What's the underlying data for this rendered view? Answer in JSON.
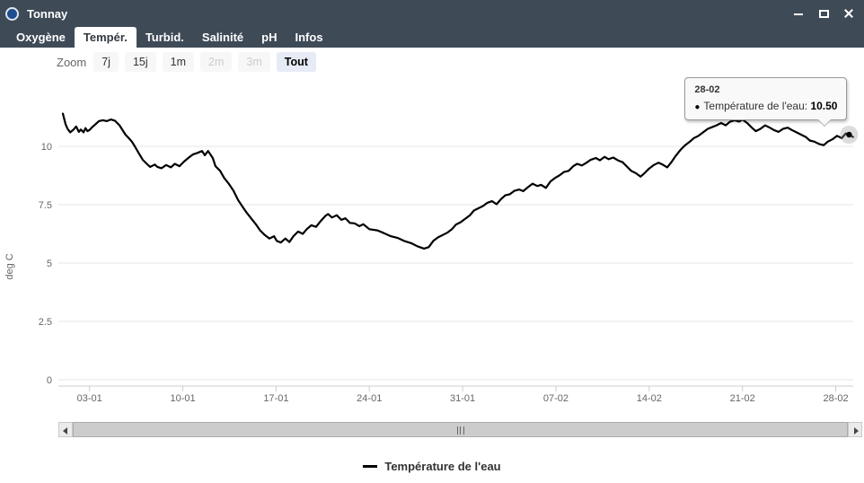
{
  "window": {
    "title": "Tonnay"
  },
  "tabs": [
    {
      "label": "Oxygène",
      "active": false
    },
    {
      "label": "Tempér.",
      "active": true
    },
    {
      "label": "Turbid.",
      "active": false
    },
    {
      "label": "Salinité",
      "active": false
    },
    {
      "label": "pH",
      "active": false
    },
    {
      "label": "Infos",
      "active": false
    }
  ],
  "zoom_bar": {
    "label": "Zoom",
    "buttons": [
      {
        "label": "7j",
        "state": "enabled"
      },
      {
        "label": "15j",
        "state": "enabled"
      },
      {
        "label": "1m",
        "state": "enabled"
      },
      {
        "label": "2m",
        "state": "disabled"
      },
      {
        "label": "3m",
        "state": "disabled"
      },
      {
        "label": "Tout",
        "state": "active"
      }
    ]
  },
  "tooltip": {
    "date": "28-02",
    "marker": "●",
    "series": "Température de l'eau",
    "value": "10.50"
  },
  "legend": {
    "items": [
      {
        "label": "Température de l'eau",
        "color": "#000000"
      }
    ]
  },
  "colors": {
    "header_bg": "#3f4a57",
    "active_tab_bg": "#ffffff",
    "series": "#000000",
    "zoom_active_bg": "#e6ebf5",
    "grid": "#e6e6e6",
    "axis_line": "#cccccc",
    "axis_text": "#666666",
    "tooltip_bg": "#f9f9f9"
  },
  "chart_data": {
    "type": "line",
    "title": "",
    "xlabel": "",
    "ylabel": "deg C",
    "grid": true,
    "legend_position": "bottom-center",
    "ylim": [
      0,
      11.9
    ],
    "xlim_days": [
      1,
      60.3
    ],
    "y_ticks": [
      {
        "v": 0,
        "label": "0"
      },
      {
        "v": 2.5,
        "label": "2.5"
      },
      {
        "v": 5,
        "label": "5"
      },
      {
        "v": 7.5,
        "label": "7.5"
      },
      {
        "v": 10,
        "label": "10"
      }
    ],
    "x_ticks": [
      {
        "day": 3,
        "label": "03-01"
      },
      {
        "day": 10,
        "label": "10-01"
      },
      {
        "day": 17,
        "label": "17-01"
      },
      {
        "day": 24,
        "label": "24-01"
      },
      {
        "day": 31,
        "label": "31-01"
      },
      {
        "day": 38,
        "label": "07-02"
      },
      {
        "day": 45,
        "label": "14-02"
      },
      {
        "day": 52,
        "label": "21-02"
      },
      {
        "day": 59,
        "label": "28-02"
      }
    ],
    "series": [
      {
        "name": "Température de l'eau",
        "color": "#000000",
        "points": [
          [
            1.0,
            11.4
          ],
          [
            1.2,
            10.95
          ],
          [
            1.35,
            10.75
          ],
          [
            1.55,
            10.6
          ],
          [
            1.8,
            10.72
          ],
          [
            2.0,
            10.85
          ],
          [
            2.2,
            10.62
          ],
          [
            2.35,
            10.72
          ],
          [
            2.55,
            10.6
          ],
          [
            2.7,
            10.78
          ],
          [
            2.85,
            10.65
          ],
          [
            3.0,
            10.7
          ],
          [
            3.2,
            10.82
          ],
          [
            3.4,
            10.92
          ],
          [
            3.7,
            11.08
          ],
          [
            4.0,
            11.12
          ],
          [
            4.3,
            11.08
          ],
          [
            4.6,
            11.15
          ],
          [
            4.9,
            11.1
          ],
          [
            5.25,
            10.9
          ],
          [
            5.7,
            10.5
          ],
          [
            6.0,
            10.32
          ],
          [
            6.2,
            10.18
          ],
          [
            6.4,
            10.0
          ],
          [
            6.7,
            9.7
          ],
          [
            7.0,
            9.42
          ],
          [
            7.3,
            9.25
          ],
          [
            7.55,
            9.12
          ],
          [
            7.9,
            9.22
          ],
          [
            8.1,
            9.12
          ],
          [
            8.4,
            9.06
          ],
          [
            8.75,
            9.2
          ],
          [
            9.1,
            9.1
          ],
          [
            9.4,
            9.25
          ],
          [
            9.75,
            9.15
          ],
          [
            10.1,
            9.35
          ],
          [
            10.45,
            9.52
          ],
          [
            10.75,
            9.65
          ],
          [
            11.1,
            9.72
          ],
          [
            11.45,
            9.8
          ],
          [
            11.65,
            9.62
          ],
          [
            11.9,
            9.8
          ],
          [
            12.25,
            9.5
          ],
          [
            12.45,
            9.15
          ],
          [
            12.8,
            8.95
          ],
          [
            13.1,
            8.65
          ],
          [
            13.45,
            8.4
          ],
          [
            13.8,
            8.1
          ],
          [
            14.15,
            7.7
          ],
          [
            14.5,
            7.4
          ],
          [
            14.8,
            7.15
          ],
          [
            15.15,
            6.9
          ],
          [
            15.5,
            6.65
          ],
          [
            15.8,
            6.4
          ],
          [
            16.15,
            6.2
          ],
          [
            16.5,
            6.05
          ],
          [
            16.85,
            6.15
          ],
          [
            17.05,
            5.95
          ],
          [
            17.35,
            5.88
          ],
          [
            17.7,
            6.05
          ],
          [
            18.0,
            5.9
          ],
          [
            18.3,
            6.15
          ],
          [
            18.65,
            6.35
          ],
          [
            19.0,
            6.25
          ],
          [
            19.3,
            6.45
          ],
          [
            19.65,
            6.62
          ],
          [
            20.0,
            6.55
          ],
          [
            20.35,
            6.8
          ],
          [
            20.7,
            7.02
          ],
          [
            20.9,
            7.1
          ],
          [
            21.2,
            6.95
          ],
          [
            21.55,
            7.05
          ],
          [
            21.9,
            6.85
          ],
          [
            22.2,
            6.92
          ],
          [
            22.55,
            6.72
          ],
          [
            22.9,
            6.7
          ],
          [
            23.25,
            6.58
          ],
          [
            23.55,
            6.66
          ],
          [
            24.0,
            6.45
          ],
          [
            24.6,
            6.4
          ],
          [
            25.1,
            6.28
          ],
          [
            25.6,
            6.15
          ],
          [
            26.1,
            6.08
          ],
          [
            26.6,
            5.95
          ],
          [
            27.15,
            5.85
          ],
          [
            27.6,
            5.72
          ],
          [
            28.1,
            5.62
          ],
          [
            28.45,
            5.68
          ],
          [
            28.8,
            5.95
          ],
          [
            29.15,
            6.1
          ],
          [
            29.5,
            6.2
          ],
          [
            29.85,
            6.3
          ],
          [
            30.2,
            6.45
          ],
          [
            30.5,
            6.65
          ],
          [
            30.85,
            6.75
          ],
          [
            31.2,
            6.9
          ],
          [
            31.55,
            7.05
          ],
          [
            31.85,
            7.25
          ],
          [
            32.2,
            7.35
          ],
          [
            32.55,
            7.45
          ],
          [
            32.85,
            7.58
          ],
          [
            33.2,
            7.65
          ],
          [
            33.55,
            7.52
          ],
          [
            33.9,
            7.75
          ],
          [
            34.2,
            7.9
          ],
          [
            34.55,
            7.95
          ],
          [
            34.9,
            8.1
          ],
          [
            35.25,
            8.15
          ],
          [
            35.55,
            8.08
          ],
          [
            35.9,
            8.25
          ],
          [
            36.25,
            8.4
          ],
          [
            36.6,
            8.3
          ],
          [
            36.9,
            8.35
          ],
          [
            37.25,
            8.22
          ],
          [
            37.6,
            8.5
          ],
          [
            37.95,
            8.65
          ],
          [
            38.25,
            8.75
          ],
          [
            38.6,
            8.9
          ],
          [
            38.95,
            8.95
          ],
          [
            39.3,
            9.15
          ],
          [
            39.6,
            9.25
          ],
          [
            39.95,
            9.18
          ],
          [
            40.3,
            9.3
          ],
          [
            40.6,
            9.42
          ],
          [
            41.0,
            9.5
          ],
          [
            41.3,
            9.4
          ],
          [
            41.65,
            9.55
          ],
          [
            41.95,
            9.45
          ],
          [
            42.3,
            9.52
          ],
          [
            42.65,
            9.4
          ],
          [
            43.0,
            9.32
          ],
          [
            43.3,
            9.15
          ],
          [
            43.65,
            8.95
          ],
          [
            44.0,
            8.85
          ],
          [
            44.35,
            8.7
          ],
          [
            44.65,
            8.85
          ],
          [
            45.0,
            9.05
          ],
          [
            45.35,
            9.2
          ],
          [
            45.7,
            9.3
          ],
          [
            46.0,
            9.22
          ],
          [
            46.35,
            9.1
          ],
          [
            46.7,
            9.35
          ],
          [
            47.0,
            9.6
          ],
          [
            47.35,
            9.85
          ],
          [
            47.7,
            10.05
          ],
          [
            48.05,
            10.2
          ],
          [
            48.35,
            10.35
          ],
          [
            48.7,
            10.45
          ],
          [
            49.05,
            10.6
          ],
          [
            49.4,
            10.75
          ],
          [
            49.7,
            10.82
          ],
          [
            50.05,
            10.9
          ],
          [
            50.4,
            11.0
          ],
          [
            50.75,
            10.9
          ],
          [
            51.05,
            11.05
          ],
          [
            51.4,
            11.12
          ],
          [
            51.75,
            11.06
          ],
          [
            52.0,
            11.15
          ],
          [
            52.35,
            11.0
          ],
          [
            52.7,
            10.8
          ],
          [
            53.0,
            10.65
          ],
          [
            53.35,
            10.75
          ],
          [
            53.7,
            10.9
          ],
          [
            54.05,
            10.8
          ],
          [
            54.35,
            10.7
          ],
          [
            54.7,
            10.62
          ],
          [
            55.05,
            10.75
          ],
          [
            55.4,
            10.8
          ],
          [
            55.7,
            10.7
          ],
          [
            56.05,
            10.6
          ],
          [
            56.4,
            10.5
          ],
          [
            56.75,
            10.4
          ],
          [
            57.05,
            10.25
          ],
          [
            57.4,
            10.2
          ],
          [
            57.75,
            10.1
          ],
          [
            58.1,
            10.05
          ],
          [
            58.4,
            10.2
          ],
          [
            58.75,
            10.3
          ],
          [
            59.1,
            10.45
          ],
          [
            59.45,
            10.35
          ],
          [
            59.75,
            10.55
          ],
          [
            60.0,
            10.5
          ],
          [
            60.3,
            10.4
          ]
        ]
      }
    ],
    "hover_point": {
      "day": 60.0,
      "value": 10.5,
      "label_date": "28-02"
    }
  }
}
